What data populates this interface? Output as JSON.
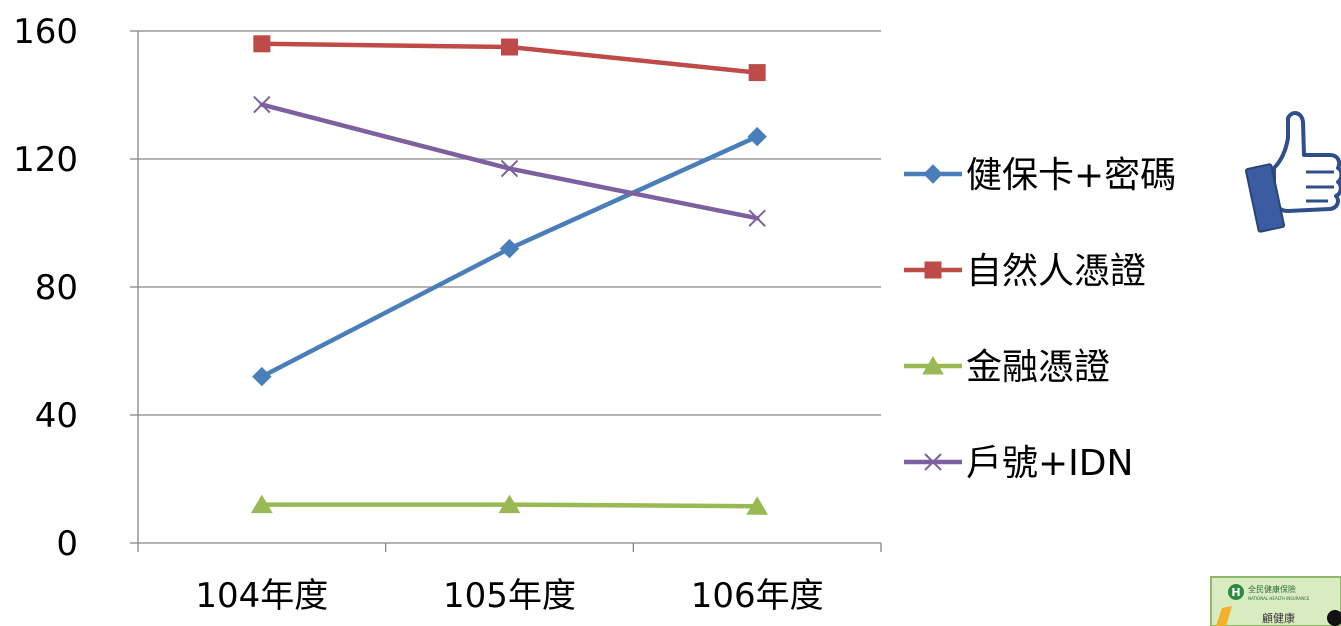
{
  "chart_data": {
    "type": "line",
    "categories": [
      "104年度",
      "105年度",
      "106年度"
    ],
    "ylim": [
      0,
      160
    ],
    "yticks": [
      0,
      40,
      80,
      120,
      160
    ],
    "grid": true,
    "legend_position": "right",
    "series": [
      {
        "name": "健保卡+密碼",
        "values": [
          52,
          92,
          127
        ],
        "color": "#4a7ebb",
        "marker": "diamond"
      },
      {
        "name": "自然人憑證",
        "values": [
          156,
          155,
          147
        ],
        "color": "#be4b48",
        "marker": "square"
      },
      {
        "name": "金融憑證",
        "values": [
          12,
          12,
          11.5
        ],
        "color": "#98b954",
        "marker": "triangle"
      },
      {
        "name": "戶號+IDN",
        "values": [
          137,
          117,
          101.5
        ],
        "color": "#7d60a0",
        "marker": "x"
      }
    ]
  },
  "decorations": {
    "thumbs_up": "thumbs-up-icon",
    "nhi_logo": "nhi-card-logo",
    "nhi_logo_text": "全民健康保險",
    "nhi_logo_subtext": "NATIONAL HEALTH INSURANCE",
    "nhi_logo_bottom": "顧健康"
  }
}
